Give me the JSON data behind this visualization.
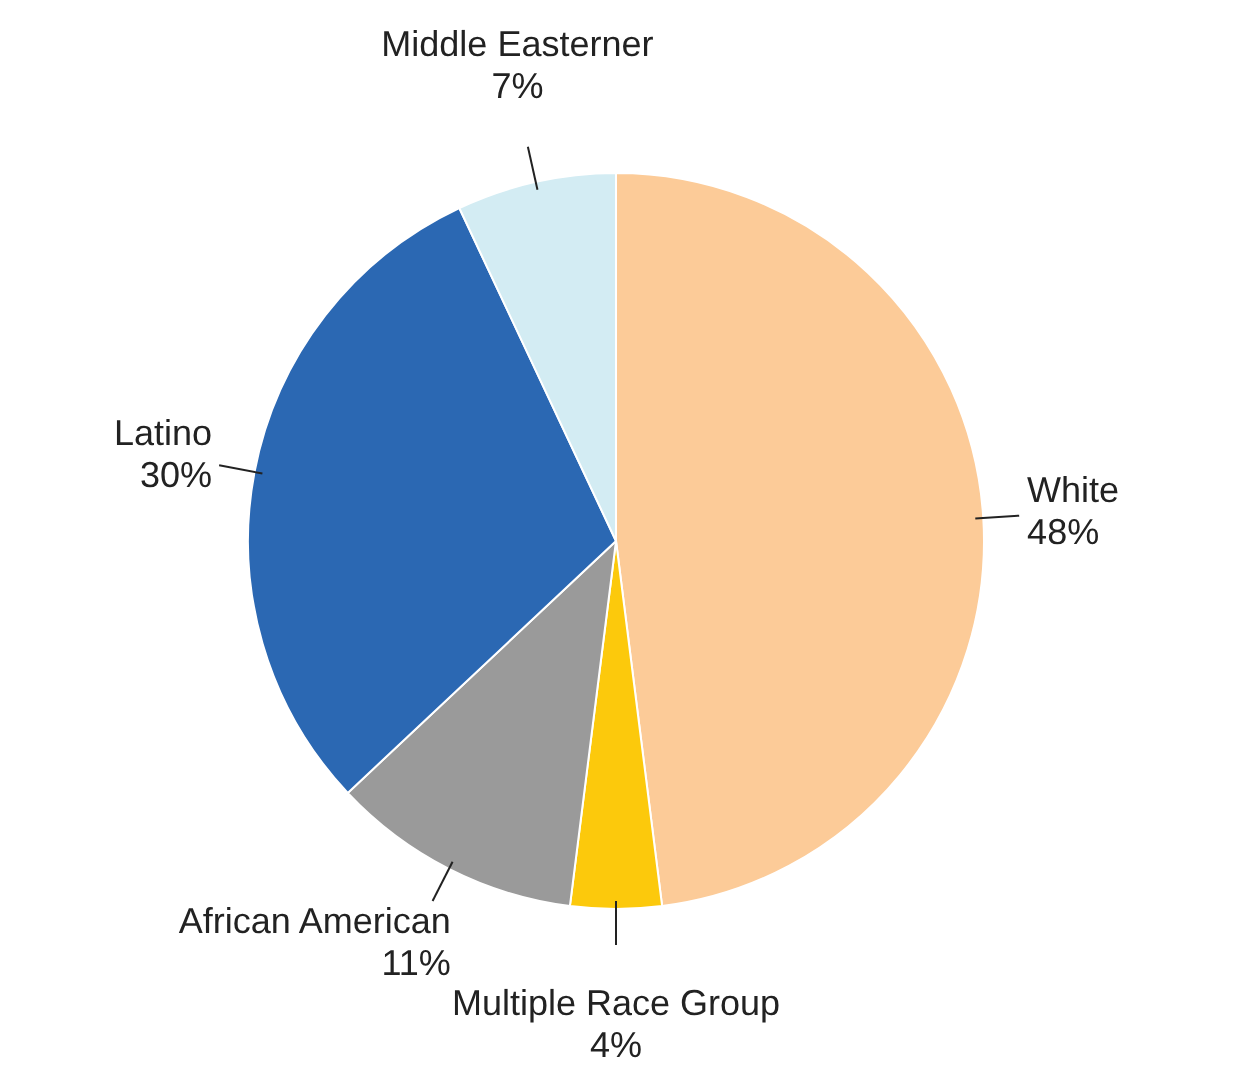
{
  "chart_data": {
    "type": "pie",
    "categories": [
      "White",
      "Multiple Race Group",
      "African American",
      "Latino",
      "Middle Easterner"
    ],
    "values": [
      48,
      4,
      11,
      30,
      7
    ],
    "value_labels": [
      "48%",
      "4%",
      "11%",
      "30%",
      "7%"
    ],
    "colors": [
      "#fccb98",
      "#fcc90c",
      "#9a9a9a",
      "#2b68b3",
      "#d3ecf3"
    ],
    "legend": false
  }
}
